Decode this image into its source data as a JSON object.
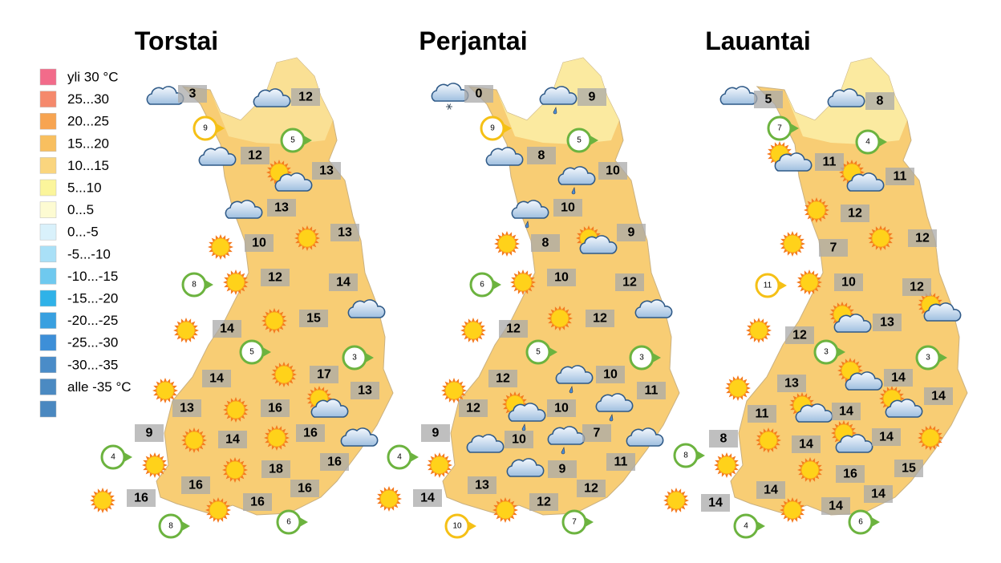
{
  "legend": [
    {
      "label": "yli 30 °C",
      "color": "#f26b8a"
    },
    {
      "label": "25...30",
      "color": "#f5896c"
    },
    {
      "label": "20...25",
      "color": "#f7a451"
    },
    {
      "label": "15...20",
      "color": "#f8bf5f"
    },
    {
      "label": "10...15",
      "color": "#fad57e"
    },
    {
      "label": "5...10",
      "color": "#fbf59b"
    },
    {
      "label": "0...5",
      "color": "#fdfbd2"
    },
    {
      "label": "0...-5",
      "color": "#d9f1fb"
    },
    {
      "label": "-5...-10",
      "color": "#a9e0f7"
    },
    {
      "label": "-10...-15",
      "color": "#6fc9ef"
    },
    {
      "label": "-15...-20",
      "color": "#2fb2e8"
    },
    {
      "label": "-20...-25",
      "color": "#38a0e0"
    },
    {
      "label": "-25...-30",
      "color": "#3d8fd8"
    },
    {
      "label": "-30...-35",
      "color": "#4a8cc8"
    },
    {
      "label": "alle -35 °C",
      "color": "#4b8ac2"
    },
    {
      "color": "#4a88c0"
    }
  ],
  "days": [
    {
      "title": "Torstai",
      "temperatures": [
        3,
        12,
        12,
        13,
        13,
        10,
        13,
        12,
        14,
        15,
        14,
        17,
        14,
        13,
        13,
        16,
        16,
        9,
        14,
        18,
        16,
        16,
        16,
        16,
        16
      ],
      "winds": [
        {
          "speed": 9,
          "color": "#f5c016"
        },
        {
          "speed": 5,
          "color": "#6cb33f"
        },
        {
          "speed": 8,
          "color": "#6cb33f"
        },
        {
          "speed": 5,
          "color": "#6cb33f"
        },
        {
          "speed": 3,
          "color": "#6cb33f"
        },
        {
          "speed": 4,
          "color": "#6cb33f"
        },
        {
          "speed": 8,
          "color": "#6cb33f"
        },
        {
          "speed": 6,
          "color": "#6cb33f"
        }
      ]
    },
    {
      "title": "Perjantai",
      "temperatures": [
        0,
        9,
        8,
        10,
        10,
        8,
        9,
        10,
        12,
        12,
        12,
        10,
        12,
        11,
        12,
        10,
        7,
        9,
        10,
        9,
        11,
        13,
        12,
        14,
        12
      ],
      "winds": [
        {
          "speed": 9,
          "color": "#f5c016"
        },
        {
          "speed": 5,
          "color": "#6cb33f"
        },
        {
          "speed": 6,
          "color": "#6cb33f"
        },
        {
          "speed": 5,
          "color": "#6cb33f"
        },
        {
          "speed": 3,
          "color": "#6cb33f"
        },
        {
          "speed": 4,
          "color": "#6cb33f"
        },
        {
          "speed": 10,
          "color": "#f5c016"
        },
        {
          "speed": 7,
          "color": "#6cb33f"
        }
      ]
    },
    {
      "title": "Lauantai",
      "temperatures": [
        5,
        8,
        11,
        11,
        12,
        7,
        12,
        10,
        12,
        13,
        12,
        14,
        13,
        14,
        11,
        14,
        14,
        14,
        8,
        16,
        15,
        14,
        14,
        14,
        14
      ],
      "winds": [
        {
          "speed": 7,
          "color": "#6cb33f"
        },
        {
          "speed": 4,
          "color": "#6cb33f"
        },
        {
          "speed": 11,
          "color": "#f5c016"
        },
        {
          "speed": 3,
          "color": "#6cb33f"
        },
        {
          "speed": 3,
          "color": "#6cb33f"
        },
        {
          "speed": 8,
          "color": "#6cb33f"
        },
        {
          "speed": 4,
          "color": "#6cb33f"
        },
        {
          "speed": 6,
          "color": "#6cb33f"
        }
      ]
    }
  ]
}
